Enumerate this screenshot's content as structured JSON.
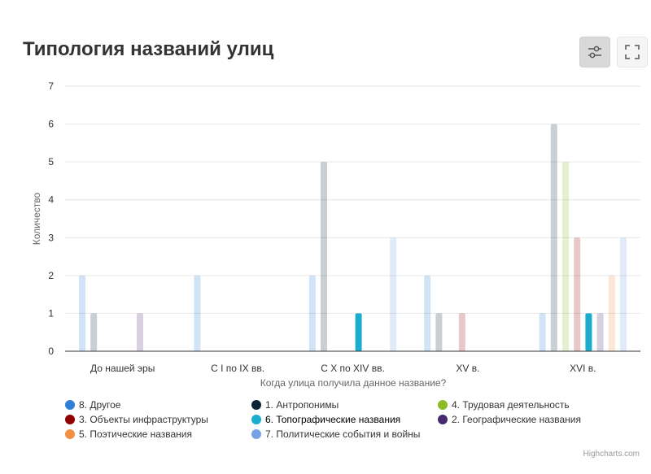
{
  "title": "Типология названий улиц",
  "toolbar": {
    "settings_icon": "sliders-icon",
    "fullscreen_icon": "fullscreen-icon"
  },
  "credits": "Highcharts.com",
  "chart_data": {
    "type": "bar",
    "title": "Типология названий улиц",
    "xlabel": "Когда улица получила данное название?",
    "ylabel": "Количество",
    "ylim": [
      0,
      7
    ],
    "yticks": [
      0,
      1,
      2,
      3,
      4,
      5,
      6,
      7
    ],
    "grid": true,
    "legend_position": "bottom",
    "categories": [
      "До нашей эры",
      "С I по IX вв.",
      "С X по XIV вв.",
      "XV в.",
      "XVI в."
    ],
    "series": [
      {
        "name": "8. Другое",
        "color": "#2f7ed8",
        "values": [
          2,
          2,
          2,
          2,
          1
        ],
        "faded": true
      },
      {
        "name": "1. Антропонимы",
        "color": "#0d233a",
        "values": [
          1,
          0,
          5,
          1,
          6
        ],
        "faded": true
      },
      {
        "name": "4. Трудовая деятельность",
        "color": "#8bbc21",
        "values": [
          0,
          0,
          0,
          0,
          5
        ],
        "faded": true
      },
      {
        "name": "3. Объекты инфраструктуры",
        "color": "#910000",
        "values": [
          0,
          0,
          0,
          1,
          3
        ],
        "faded": true
      },
      {
        "name": "6. Топографические названия",
        "color": "#1aadce",
        "values": [
          0,
          0,
          1,
          0,
          1
        ],
        "faded": false
      },
      {
        "name": "2. Географические названия",
        "color": "#492970",
        "values": [
          1,
          0,
          0,
          0,
          1
        ],
        "faded": true
      },
      {
        "name": "5. Поэтические названия",
        "color": "#f28f43",
        "values": [
          0,
          0,
          0,
          0,
          2
        ],
        "faded": true
      },
      {
        "name": "7. Политические события и войны",
        "color": "#77a1e5",
        "values": [
          0,
          0,
          3,
          0,
          3
        ],
        "faded": true
      }
    ],
    "legend_order": [
      0,
      1,
      2,
      3,
      4,
      5,
      6,
      7
    ]
  }
}
